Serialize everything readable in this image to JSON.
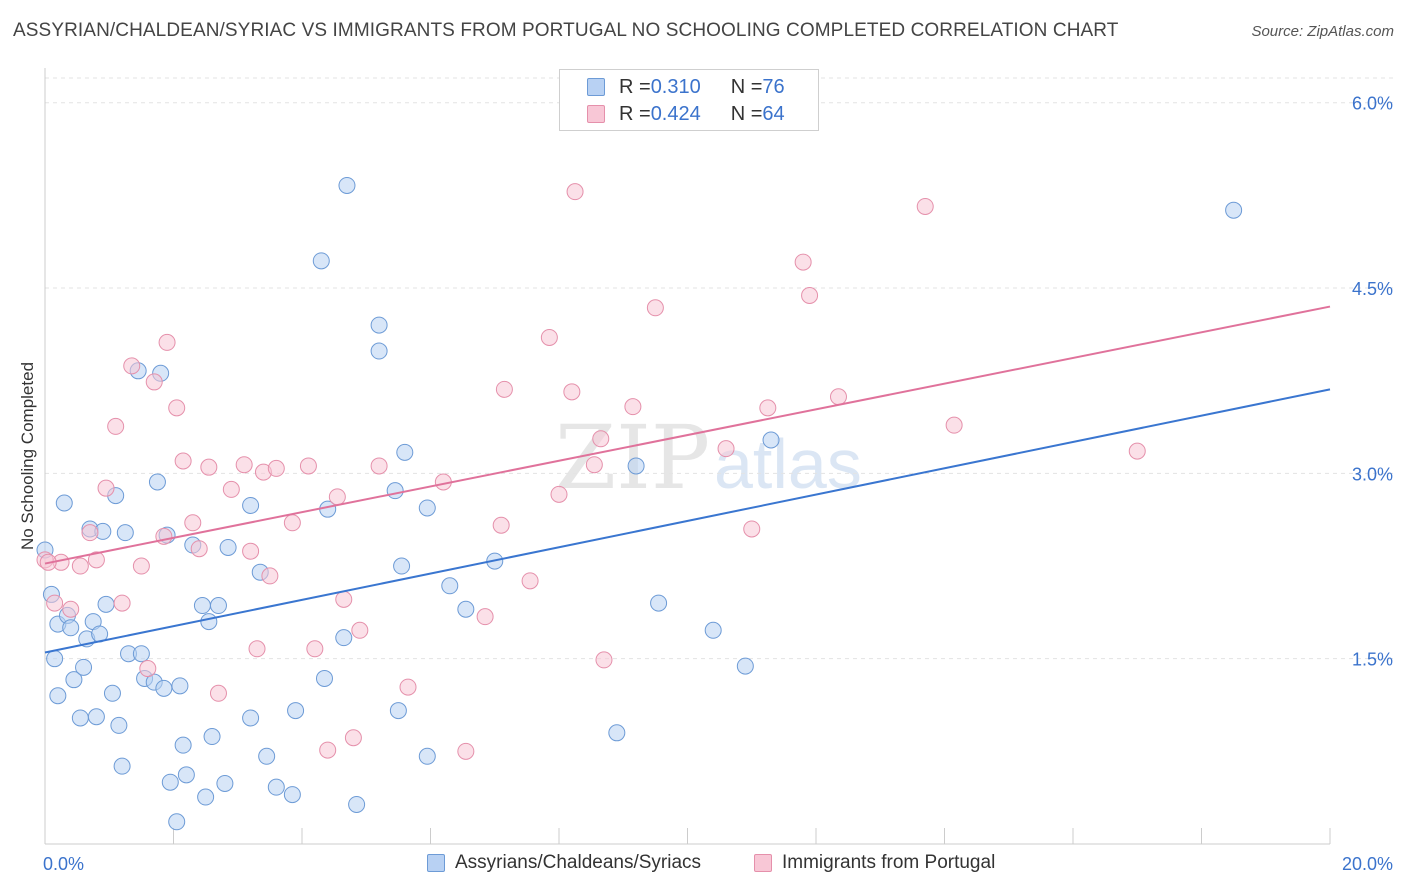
{
  "title": "ASSYRIAN/CHALDEAN/SYRIAC VS IMMIGRANTS FROM PORTUGAL NO SCHOOLING COMPLETED CORRELATION CHART",
  "source": "Source: ZipAtlas.com",
  "watermark": "ZIPatlas",
  "legend": {
    "rows": [
      {
        "r_label": "R = ",
        "r_value": "0.310",
        "n_label": "N = ",
        "n_value": "76"
      },
      {
        "r_label": "R = ",
        "r_value": "0.424",
        "n_label": "N = ",
        "n_value": "64"
      }
    ]
  },
  "chart_data": {
    "type": "scatter",
    "ylabel": "No Schooling Completed",
    "xlim": [
      0,
      20
    ],
    "ylim": [
      0,
      6.2
    ],
    "x_tick_labels": [
      "0.0%",
      "20.0%"
    ],
    "y_ticks": [
      1.5,
      3.0,
      4.5,
      6.0
    ],
    "y_tick_labels": [
      "1.5%",
      "3.0%",
      "4.5%",
      "6.0%"
    ],
    "grid": true,
    "colors": {
      "blue_fill": "#b8d1f3",
      "blue_stroke": "#6d9bd6",
      "blue_line": "#3a76d0",
      "pink_fill": "#f8c7d6",
      "pink_stroke": "#e590ab",
      "pink_line": "#e0729b",
      "tick_label": "#3b73cc"
    },
    "series": [
      {
        "name": "Assyrians/Chaldeans/Syriacs",
        "trend": {
          "x": [
            0,
            20
          ],
          "y": [
            1.55,
            3.68
          ]
        },
        "points": [
          [
            0.0,
            2.38
          ],
          [
            0.1,
            2.02
          ],
          [
            0.15,
            1.5
          ],
          [
            0.2,
            1.78
          ],
          [
            0.3,
            2.76
          ],
          [
            0.35,
            1.85
          ],
          [
            0.4,
            1.75
          ],
          [
            0.45,
            1.33
          ],
          [
            0.55,
            1.02
          ],
          [
            0.6,
            1.43
          ],
          [
            0.65,
            1.66
          ],
          [
            0.7,
            2.55
          ],
          [
            0.75,
            1.8
          ],
          [
            0.8,
            1.03
          ],
          [
            0.85,
            1.7
          ],
          [
            0.9,
            2.53
          ],
          [
            0.95,
            1.94
          ],
          [
            1.05,
            1.22
          ],
          [
            1.1,
            2.82
          ],
          [
            1.15,
            0.96
          ],
          [
            1.2,
            0.63
          ],
          [
            1.25,
            2.52
          ],
          [
            1.3,
            1.54
          ],
          [
            1.45,
            3.83
          ],
          [
            1.5,
            1.54
          ],
          [
            1.55,
            1.34
          ],
          [
            1.7,
            1.31
          ],
          [
            1.75,
            2.93
          ],
          [
            1.8,
            3.81
          ],
          [
            1.85,
            1.26
          ],
          [
            1.9,
            2.5
          ],
          [
            1.95,
            0.5
          ],
          [
            2.05,
            0.18
          ],
          [
            2.1,
            1.28
          ],
          [
            2.15,
            0.8
          ],
          [
            2.2,
            0.56
          ],
          [
            2.3,
            2.42
          ],
          [
            2.45,
            1.93
          ],
          [
            2.5,
            0.38
          ],
          [
            2.55,
            1.8
          ],
          [
            2.6,
            0.87
          ],
          [
            2.7,
            1.93
          ],
          [
            2.8,
            0.49
          ],
          [
            2.85,
            2.4
          ],
          [
            3.2,
            1.02
          ],
          [
            3.2,
            2.74
          ],
          [
            3.35,
            2.2
          ],
          [
            3.45,
            0.71
          ],
          [
            3.6,
            0.46
          ],
          [
            3.85,
            0.4
          ],
          [
            3.9,
            1.08
          ],
          [
            4.3,
            4.72
          ],
          [
            4.35,
            1.34
          ],
          [
            4.4,
            2.71
          ],
          [
            4.65,
            1.67
          ],
          [
            4.7,
            5.33
          ],
          [
            4.85,
            0.32
          ],
          [
            5.2,
            4.2
          ],
          [
            5.2,
            3.99
          ],
          [
            5.45,
            2.86
          ],
          [
            5.5,
            1.08
          ],
          [
            5.55,
            2.25
          ],
          [
            5.6,
            3.17
          ],
          [
            5.95,
            0.71
          ],
          [
            5.95,
            2.72
          ],
          [
            6.3,
            2.09
          ],
          [
            6.55,
            1.9
          ],
          [
            7.0,
            2.29
          ],
          [
            8.9,
            0.9
          ],
          [
            9.2,
            3.06
          ],
          [
            9.55,
            1.95
          ],
          [
            10.4,
            1.73
          ],
          [
            10.9,
            1.44
          ],
          [
            11.3,
            3.27
          ],
          [
            18.5,
            5.13
          ],
          [
            0.2,
            1.2
          ]
        ]
      },
      {
        "name": "Immigrants from Portugal",
        "trend": {
          "x": [
            0,
            20
          ],
          "y": [
            2.27,
            4.35
          ]
        },
        "points": [
          [
            0.0,
            2.3
          ],
          [
            0.15,
            1.95
          ],
          [
            0.25,
            2.28
          ],
          [
            0.4,
            1.9
          ],
          [
            0.55,
            2.25
          ],
          [
            0.7,
            2.52
          ],
          [
            0.8,
            2.3
          ],
          [
            0.95,
            2.88
          ],
          [
            1.1,
            3.38
          ],
          [
            1.2,
            1.95
          ],
          [
            1.35,
            3.87
          ],
          [
            1.5,
            2.25
          ],
          [
            1.6,
            1.42
          ],
          [
            1.7,
            3.74
          ],
          [
            1.85,
            2.49
          ],
          [
            1.9,
            4.06
          ],
          [
            2.05,
            3.53
          ],
          [
            2.15,
            3.1
          ],
          [
            2.3,
            2.6
          ],
          [
            2.4,
            2.39
          ],
          [
            2.55,
            3.05
          ],
          [
            2.7,
            1.22
          ],
          [
            2.9,
            2.87
          ],
          [
            3.1,
            3.07
          ],
          [
            3.2,
            2.37
          ],
          [
            3.3,
            1.58
          ],
          [
            3.4,
            3.01
          ],
          [
            3.5,
            2.17
          ],
          [
            3.6,
            3.04
          ],
          [
            3.85,
            2.6
          ],
          [
            4.1,
            3.06
          ],
          [
            4.2,
            1.58
          ],
          [
            4.4,
            0.76
          ],
          [
            4.55,
            2.81
          ],
          [
            4.65,
            1.98
          ],
          [
            4.8,
            0.86
          ],
          [
            4.9,
            1.73
          ],
          [
            5.2,
            3.06
          ],
          [
            5.65,
            1.27
          ],
          [
            6.2,
            2.93
          ],
          [
            6.55,
            0.75
          ],
          [
            6.85,
            1.84
          ],
          [
            7.1,
            2.58
          ],
          [
            7.15,
            3.68
          ],
          [
            7.55,
            2.13
          ],
          [
            7.85,
            4.1
          ],
          [
            8.0,
            2.83
          ],
          [
            8.2,
            3.66
          ],
          [
            8.25,
            5.28
          ],
          [
            8.55,
            3.07
          ],
          [
            8.65,
            3.28
          ],
          [
            8.7,
            1.49
          ],
          [
            9.15,
            3.54
          ],
          [
            9.5,
            4.34
          ],
          [
            10.6,
            3.2
          ],
          [
            11.0,
            2.55
          ],
          [
            11.25,
            3.53
          ],
          [
            11.8,
            4.71
          ],
          [
            11.9,
            4.44
          ],
          [
            12.35,
            3.62
          ],
          [
            13.7,
            5.16
          ],
          [
            14.15,
            3.39
          ],
          [
            17.0,
            3.18
          ],
          [
            0.05,
            2.28
          ]
        ]
      }
    ]
  },
  "bottom_legend": [
    {
      "label": "Assyrians/Chaldeans/Syriacs"
    },
    {
      "label": "Immigrants from Portugal"
    }
  ]
}
